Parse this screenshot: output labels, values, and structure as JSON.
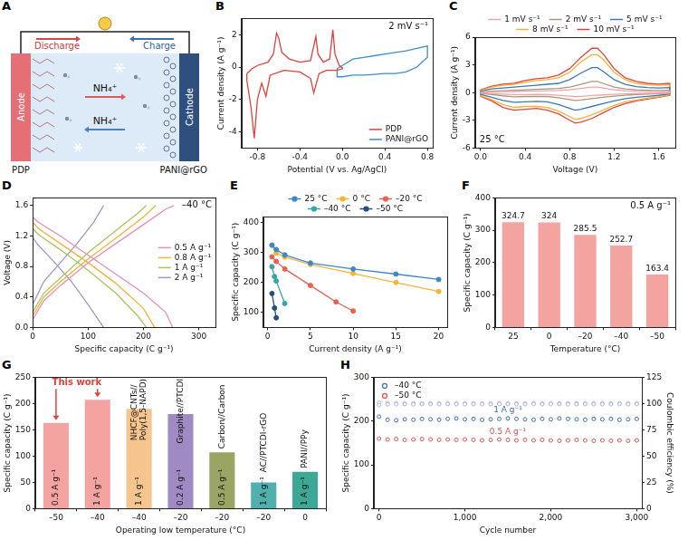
{
  "schematic": {
    "panel": "A",
    "discharge": "Discharge",
    "charge": "Charge",
    "anode": "Anode",
    "cathode": "Cathode",
    "ion": "NH₄⁺",
    "anode_material": "PDP",
    "cathode_material": "PANI@rGO"
  },
  "chart_data": [
    {
      "panel": "B",
      "type": "line",
      "x_label": "Potential (V vs. Ag/AgCl)",
      "y_label": "Current density (A g⁻¹)",
      "annotations": [
        "2 mV s⁻¹"
      ],
      "xlim": [
        -0.95,
        0.85
      ],
      "xticks": [
        -0.8,
        -0.4,
        {
          "value": 0,
          "label": "0.0"
        },
        0.4,
        0.8
      ],
      "ylim": [
        -5,
        3
      ],
      "yticks": [
        -4,
        -2,
        0,
        2
      ],
      "grid": false,
      "legend": "bottom-right",
      "series": [
        {
          "name": "PDP",
          "color": "#e0413a",
          "x": [
            -0.9,
            -0.85,
            -0.8,
            -0.7,
            -0.65,
            -0.62,
            -0.6,
            -0.57,
            -0.5,
            -0.4,
            -0.3,
            -0.25,
            -0.23,
            -0.18,
            -0.12,
            -0.09,
            -0.07,
            -0.03,
            0,
            0,
            -0.05,
            -0.15,
            -0.22,
            -0.27,
            -0.3,
            -0.4,
            -0.55,
            -0.68,
            -0.72,
            -0.76,
            -0.8,
            -0.83,
            -0.86,
            -0.9,
            -0.9
          ],
          "values": [
            -0.4,
            -0.1,
            0.1,
            0.3,
            0.8,
            2.1,
            1.8,
            0.9,
            0.5,
            0.3,
            0.4,
            1.9,
            0.8,
            0.3,
            0.5,
            2.3,
            0.8,
            0.1,
            -0.05,
            -0.1,
            -0.2,
            -0.2,
            -0.4,
            -1.6,
            -0.7,
            -0.3,
            -0.2,
            -0.5,
            -1.8,
            -1.0,
            -2.0,
            -4.4,
            -2.5,
            -0.8,
            -0.4
          ]
        },
        {
          "name": "PANI@rGO",
          "color": "#3d8fc6",
          "x": [
            0,
            0.1,
            0.2,
            0.3,
            0.4,
            0.5,
            0.6,
            0.7,
            0.8,
            0.8,
            0.7,
            0.6,
            0.5,
            0.4,
            0.3,
            0.2,
            0.1,
            0,
            -0.05,
            -0.05,
            0
          ],
          "values": [
            0.1,
            0.5,
            0.6,
            0.7,
            0.8,
            0.9,
            1.0,
            1.15,
            1.3,
            0.6,
            0.0,
            -0.3,
            -0.4,
            -0.4,
            -0.45,
            -0.5,
            -0.5,
            -0.6,
            -0.6,
            -0.1,
            0.1
          ]
        }
      ]
    },
    {
      "panel": "C",
      "type": "line",
      "x_label": "Voltage (V)",
      "y_label": "Current density (A g⁻¹)",
      "annotations": [
        "25 °C"
      ],
      "x": [
        0,
        0.1,
        0.2,
        0.3,
        0.4,
        0.5,
        0.6,
        0.7,
        0.8,
        0.9,
        1.0,
        1.05,
        1.1,
        1.2,
        1.3,
        1.4,
        1.5,
        1.6,
        1.7,
        1.7,
        1.6,
        1.5,
        1.4,
        1.3,
        1.2,
        1.1,
        1.0,
        0.9,
        0.85,
        0.8,
        0.7,
        0.6,
        0.5,
        0.4,
        0.3,
        0.2,
        0.1,
        0,
        0
      ],
      "xlim": [
        -0.05,
        1.75
      ],
      "xticks": [
        {
          "value": 0,
          "label": "0.0"
        },
        0.4,
        0.8,
        1.2,
        1.6
      ],
      "ylim": [
        -6,
        6
      ],
      "yticks": [
        -6,
        -3,
        0,
        3,
        6
      ],
      "grid": false,
      "legend": "top",
      "series": [
        {
          "name": "1 mV s⁻¹",
          "color": "#f2a3a8",
          "values": [
            0.03,
            0.08,
            0.1,
            0.12,
            0.15,
            0.18,
            0.2,
            0.22,
            0.3,
            0.45,
            0.6,
            0.6,
            0.5,
            0.3,
            0.2,
            0.15,
            0.13,
            0.11,
            0.12,
            -0.03,
            -0.06,
            -0.08,
            -0.1,
            -0.14,
            -0.19,
            -0.25,
            -0.32,
            -0.4,
            -0.43,
            -0.38,
            -0.28,
            -0.21,
            -0.2,
            -0.21,
            -0.22,
            -0.17,
            -0.1,
            -0.04,
            0.03
          ]
        },
        {
          "name": "2 mV s⁻¹",
          "color": "#a8987e",
          "values": [
            0.05,
            0.15,
            0.2,
            0.25,
            0.3,
            0.35,
            0.4,
            0.45,
            0.6,
            0.9,
            1.2,
            1.2,
            1.0,
            0.6,
            0.4,
            0.3,
            0.25,
            0.22,
            0.25,
            -0.05,
            -0.12,
            -0.16,
            -0.2,
            -0.28,
            -0.38,
            -0.5,
            -0.65,
            -0.8,
            -0.85,
            -0.75,
            -0.55,
            -0.42,
            -0.4,
            -0.42,
            -0.45,
            -0.35,
            -0.2,
            -0.08,
            0.05
          ]
        },
        {
          "name": "5 mV s⁻¹",
          "color": "#3f78b5",
          "values": [
            0.15,
            0.4,
            0.5,
            0.6,
            0.7,
            0.8,
            0.9,
            1.0,
            1.4,
            2.1,
            2.7,
            2.7,
            2.3,
            1.4,
            0.9,
            0.65,
            0.55,
            0.5,
            0.55,
            -0.15,
            -0.3,
            -0.4,
            -0.5,
            -0.65,
            -0.9,
            -1.2,
            -1.5,
            -1.8,
            -1.9,
            -1.7,
            -1.3,
            -1.0,
            -0.95,
            -1.0,
            -1.05,
            -0.85,
            -0.5,
            -0.2,
            0.15
          ]
        },
        {
          "name": "8 mV s⁻¹",
          "color": "#f2b33a",
          "values": [
            0.25,
            0.6,
            0.8,
            0.9,
            1.1,
            1.3,
            1.4,
            1.6,
            2.2,
            3.3,
            4.1,
            4.1,
            3.6,
            2.2,
            1.4,
            1.0,
            0.85,
            0.8,
            0.85,
            -0.25,
            -0.45,
            -0.6,
            -0.8,
            -1.0,
            -1.4,
            -1.9,
            -2.4,
            -2.8,
            -2.9,
            -2.6,
            -2.0,
            -1.6,
            -1.5,
            -1.5,
            -1.6,
            -1.3,
            -0.75,
            -0.35,
            0.25
          ]
        },
        {
          "name": "10 mV s⁻¹",
          "color": "#e0473a",
          "values": [
            0.3,
            0.7,
            0.9,
            1.0,
            1.3,
            1.5,
            1.6,
            1.9,
            2.6,
            3.8,
            4.8,
            4.8,
            4.2,
            2.6,
            1.6,
            1.2,
            1.0,
            0.9,
            1.0,
            -0.3,
            -0.5,
            -0.7,
            -0.9,
            -1.2,
            -1.6,
            -2.2,
            -2.8,
            -3.2,
            -3.3,
            -3.0,
            -2.3,
            -1.9,
            -1.7,
            -1.8,
            -1.9,
            -1.6,
            -0.9,
            -0.4,
            0.3
          ]
        }
      ]
    },
    {
      "panel": "D",
      "type": "line",
      "x_label": "Specific capacity (C g⁻¹)",
      "y_label": "Voltage (V)",
      "annotations": [
        "–40 °C"
      ],
      "xlim": [
        0,
        330
      ],
      "xticks": [
        0,
        100,
        200,
        300
      ],
      "ylim": [
        0,
        1.7
      ],
      "yticks": [
        {
          "value": 0,
          "label": "0.0"
        },
        0.4,
        0.8,
        1.2,
        1.6
      ],
      "grid": false,
      "legend": "right",
      "series": [
        {
          "name": "0.5 A g⁻¹",
          "color": "#e88fb5",
          "x": [
            0,
            20,
            50,
            100,
            150,
            200,
            240,
            255,
            null,
            0,
            10,
            50,
            100,
            150,
            200,
            240,
            252.7
          ],
          "values": [
            0.1,
            0.35,
            0.55,
            0.85,
            1.1,
            1.35,
            1.55,
            1.6,
            null,
            1.45,
            1.38,
            1.2,
            0.95,
            0.7,
            0.45,
            0.2,
            0
          ]
        },
        {
          "name": "0.8 A g⁻¹",
          "color": "#f0b43c",
          "x": [
            0,
            20,
            50,
            100,
            150,
            200,
            222,
            null,
            0,
            10,
            50,
            100,
            150,
            200,
            220
          ],
          "values": [
            0.15,
            0.4,
            0.6,
            0.9,
            1.17,
            1.45,
            1.6,
            null,
            1.38,
            1.3,
            1.1,
            0.85,
            0.58,
            0.25,
            0
          ]
        },
        {
          "name": "1 A g⁻¹",
          "color": "#a9c65a",
          "x": [
            0,
            20,
            50,
            100,
            150,
            190,
            205,
            null,
            0,
            10,
            50,
            100,
            150,
            190,
            205
          ],
          "values": [
            0.2,
            0.45,
            0.65,
            0.98,
            1.27,
            1.5,
            1.6,
            null,
            1.3,
            1.22,
            1.02,
            0.75,
            0.45,
            0.15,
            0
          ]
        },
        {
          "name": "2 A g⁻¹",
          "color": "#a595cf",
          "x": [
            0,
            20,
            50,
            80,
            110,
            128,
            null,
            0,
            10,
            40,
            70,
            100,
            128
          ],
          "values": [
            0.3,
            0.6,
            0.85,
            1.1,
            1.38,
            1.6,
            null,
            1.18,
            1.08,
            0.85,
            0.6,
            0.3,
            0
          ]
        }
      ]
    },
    {
      "panel": "E",
      "type": "line",
      "marker": "circle",
      "x_label": "Current density (A g⁻¹)",
      "y_label": "Specific capacity (C g⁻¹)",
      "xlim": [
        -0.5,
        21
      ],
      "xticks": [
        0,
        5,
        10,
        15,
        20
      ],
      "ylim": [
        50,
        420
      ],
      "yticks": [
        100,
        200,
        300,
        400
      ],
      "grid": false,
      "legend": "top",
      "series": [
        {
          "name": "25 °C",
          "color": "#3f88c5",
          "x": [
            0.5,
            1,
            2,
            5,
            10,
            15,
            20
          ],
          "values": [
            324.7,
            310,
            292,
            265,
            245,
            228,
            210
          ]
        },
        {
          "name": "0 °C",
          "color": "#f2b53a",
          "x": [
            0.5,
            1,
            2,
            5,
            10,
            15,
            20
          ],
          "values": [
            324,
            298,
            285,
            260,
            230,
            200,
            170
          ]
        },
        {
          "name": "–20 °C",
          "color": "#e8614f",
          "x": [
            0.5,
            1,
            2,
            5,
            8,
            10
          ],
          "values": [
            285.5,
            270,
            245,
            190,
            135,
            105
          ]
        },
        {
          "name": "–40 °C",
          "color": "#35a7a3",
          "x": [
            0.5,
            0.8,
            1,
            2
          ],
          "values": [
            252.7,
            220,
            205,
            130
          ]
        },
        {
          "name": "–50 °C",
          "color": "#23507f",
          "x": [
            0.5,
            0.8,
            1
          ],
          "values": [
            163.4,
            115,
            82
          ]
        }
      ]
    },
    {
      "panel": "F",
      "type": "bar",
      "x_label": "Temperature (°C)",
      "y_label": "Specific capacity (C g⁻¹)",
      "annotations": [
        "0.5 A g⁻¹"
      ],
      "categories": [
        "25",
        "0",
        "–20",
        "–40",
        "–50"
      ],
      "values": [
        324.7,
        324,
        285.5,
        252.7,
        163.4
      ],
      "color": "#f3a3a0",
      "ylim": [
        0,
        400
      ],
      "yticks": [
        0,
        100,
        200,
        300,
        400
      ],
      "data_labels": true,
      "grid": false
    },
    {
      "panel": "G",
      "type": "bar",
      "x_label": "Operating low temperature (°C)",
      "y_label": "Specific capacity (C g⁻¹)",
      "annotations": [
        "This work"
      ],
      "categories": [
        "–50",
        "–40",
        "–40",
        "–20",
        "–20",
        "–20",
        "0"
      ],
      "values": [
        163.4,
        207,
        190,
        180,
        107,
        50,
        70
      ],
      "colors": [
        "#f3a3a0",
        "#f3a3a0",
        "#f5c48f",
        "#9f8ac4",
        "#9aa463",
        "#4fb0ad",
        "#3ea897"
      ],
      "current_densities": [
        "0.5 A g⁻¹",
        "1 A g⁻¹",
        "1 A g⁻¹",
        "0.2 A g⁻¹",
        "0.5 A g⁻¹",
        "1 A g⁻¹",
        "1 A g⁻¹"
      ],
      "systems": [
        null,
        null,
        "NHCF@CNTs//Poly(1,5-NAPD)",
        "Graphite//PTCDI",
        "Carbon//Carbon",
        "AC//PTCDI-rGO",
        "PANI//PPy"
      ],
      "ylim": [
        0,
        250
      ],
      "yticks": [
        0,
        50,
        100,
        150,
        200,
        250
      ],
      "grid": false
    },
    {
      "panel": "H",
      "type": "scatter",
      "marker": "open_circle",
      "x_label": "Cycle number",
      "y_label": "Specific capacity (C g⁻¹)",
      "y2_label": "Coulombic efficiency (%)",
      "annotations": [
        "1 A g⁻¹",
        "0.5 A g⁻¹"
      ],
      "x": [
        0,
        100,
        200,
        300,
        400,
        500,
        600,
        700,
        800,
        900,
        1000,
        1100,
        1200,
        1300,
        1400,
        1500,
        1600,
        1700,
        1800,
        1900,
        2000,
        2100,
        2200,
        2300,
        2400,
        2500,
        2600,
        2700,
        2800,
        2900,
        3000
      ],
      "xlim": [
        -60,
        3060
      ],
      "xticks": [
        0,
        {
          "value": 1000,
          "label": "1,000"
        },
        {
          "value": 2000,
          "label": "2,000"
        },
        {
          "value": 3000,
          "label": "3,000"
        }
      ],
      "ylim": [
        0,
        300
      ],
      "yticks": [
        0,
        100,
        200,
        300
      ],
      "y2lim": [
        0,
        125
      ],
      "y2ticks": [
        0,
        25,
        50,
        75,
        100,
        125
      ],
      "grid": false,
      "legend": "top-left",
      "series": [
        {
          "name": "–40 °C",
          "color": "#3b6fb6",
          "values": [
            210,
            203,
            202,
            204,
            203,
            205,
            204,
            203,
            205,
            206,
            204,
            205,
            203,
            204,
            205,
            206,
            205,
            204,
            203,
            205,
            204,
            206,
            205,
            204,
            203,
            205,
            204,
            205,
            203,
            204,
            205
          ]
        },
        {
          "name": "–50 °C",
          "color": "#e0524f",
          "values": [
            160,
            158,
            159,
            157,
            158,
            159,
            158,
            157,
            158,
            157,
            158,
            157,
            156,
            157,
            158,
            157,
            156,
            157,
            156,
            157,
            156,
            155,
            156,
            157,
            156,
            155,
            156,
            155,
            156,
            155,
            156
          ]
        },
        {
          "color": "#9db8e0",
          "axis": "y2",
          "values": [
            98.5,
            99.2,
            99.4,
            99.5,
            99.3,
            99.6,
            99.5,
            99.4,
            99.6,
            99.5,
            99.4,
            99.6,
            99.5,
            99.4,
            99.6,
            99.5,
            99.4,
            99.5,
            99.6,
            99.4,
            99.5,
            99.6,
            99.4,
            99.5,
            99.6,
            99.5,
            99.4,
            99.5,
            99.6,
            99.5,
            99.5
          ]
        },
        {
          "color": "#f2a9a6",
          "axis": "y2",
          "values": [
            100.8,
            100.4,
            100.3,
            100.2,
            100.3,
            100.2,
            100.3,
            100.2,
            100.1,
            100.2,
            100.3,
            100.2,
            100.1,
            100.2,
            100.3,
            100.2,
            100.1,
            100.2,
            100.3,
            100.2,
            100.1,
            100.2,
            100.3,
            100.2,
            100.1,
            100.2,
            100.3,
            100.2,
            100.1,
            100.2,
            100.2
          ]
        }
      ]
    }
  ]
}
